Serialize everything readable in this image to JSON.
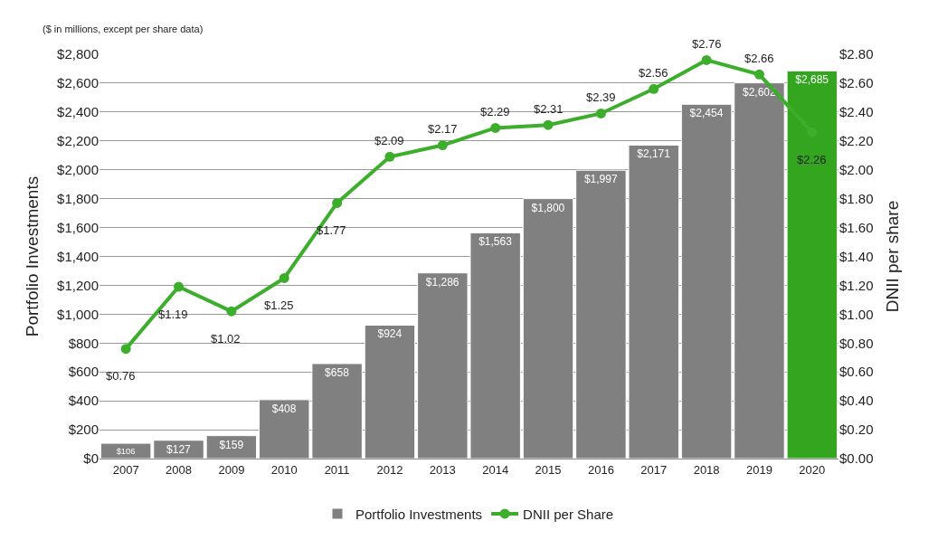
{
  "chart_data": {
    "type": "bar",
    "subtitle": "($ in millions, except per share data)",
    "ylabel": "Portfolio Investments",
    "y2label": "DNII per share",
    "categories": [
      "2007",
      "2008",
      "2009",
      "2010",
      "2011",
      "2012",
      "2013",
      "2014",
      "2015",
      "2016",
      "2017",
      "2018",
      "2019",
      "2020"
    ],
    "series": [
      {
        "name": "Portfolio Investments",
        "color": "#808080",
        "colors": [
          "#808080",
          "#808080",
          "#808080",
          "#808080",
          "#808080",
          "#808080",
          "#808080",
          "#808080",
          "#808080",
          "#808080",
          "#808080",
          "#808080",
          "#808080",
          "#33a51e"
        ],
        "values": [
          106,
          127,
          159,
          408,
          658,
          924,
          1286,
          1563,
          1800,
          1997,
          2171,
          2454,
          2602,
          2685
        ],
        "value_labels": [
          "$106",
          "$127",
          "$159",
          "$408",
          "$658",
          "$924",
          "$1,286",
          "$1,563",
          "$1,800",
          "$1,997",
          "$2,171",
          "$2,454",
          "$2,602",
          "$2,685"
        ]
      },
      {
        "name": "DNII per Share",
        "type": "line",
        "axis": "y2",
        "color": "#3cae2c",
        "marker": "circle",
        "values": [
          0.76,
          1.19,
          1.02,
          1.25,
          1.77,
          2.09,
          2.17,
          2.29,
          2.31,
          2.39,
          2.56,
          2.76,
          2.66,
          2.26
        ],
        "value_labels": [
          "$0.76",
          "$1.19",
          "$1.02",
          "$1.25",
          "$1.77",
          "$2.09",
          "$2.17",
          "$2.29",
          "$2.31",
          "$2.39",
          "$2.56",
          "$2.76",
          "$2.66",
          "$2.26"
        ]
      }
    ],
    "ylim": [
      0,
      2800
    ],
    "yticks": [
      {
        "value": 0,
        "label": "$0"
      },
      {
        "value": 200,
        "label": "$200"
      },
      {
        "value": 400,
        "label": "$400"
      },
      {
        "value": 600,
        "label": "$600"
      },
      {
        "value": 800,
        "label": "$800"
      },
      {
        "value": 1000,
        "label": "$1,000"
      },
      {
        "value": 1200,
        "label": "$1,200"
      },
      {
        "value": 1400,
        "label": "$1,400"
      },
      {
        "value": 1600,
        "label": "$1,600"
      },
      {
        "value": 1800,
        "label": "$1,800"
      },
      {
        "value": 2000,
        "label": "$2,000"
      },
      {
        "value": 2200,
        "label": "$2,200"
      },
      {
        "value": 2400,
        "label": "$2,400"
      },
      {
        "value": 2600,
        "label": "$2,600"
      },
      {
        "value": 2800,
        "label": "$2,800"
      }
    ],
    "y2lim": [
      0,
      2.8
    ],
    "y2ticks": [
      {
        "value": 0,
        "label": "$0.00"
      },
      {
        "value": 0.2,
        "label": "$0.20"
      },
      {
        "value": 0.4,
        "label": "$0.40"
      },
      {
        "value": 0.6,
        "label": "$0.60"
      },
      {
        "value": 0.8,
        "label": "$0.80"
      },
      {
        "value": 1.0,
        "label": "$1.00"
      },
      {
        "value": 1.2,
        "label": "$1.20"
      },
      {
        "value": 1.4,
        "label": "$1.40"
      },
      {
        "value": 1.6,
        "label": "$1.60"
      },
      {
        "value": 1.8,
        "label": "$1.80"
      },
      {
        "value": 2.0,
        "label": "$2.00"
      },
      {
        "value": 2.2,
        "label": "$2.20"
      },
      {
        "value": 2.4,
        "label": "$2.40"
      },
      {
        "value": 2.6,
        "label": "$2.60"
      },
      {
        "value": 2.8,
        "label": "$2.80"
      }
    ],
    "grid": "y",
    "legend": "bottom"
  }
}
